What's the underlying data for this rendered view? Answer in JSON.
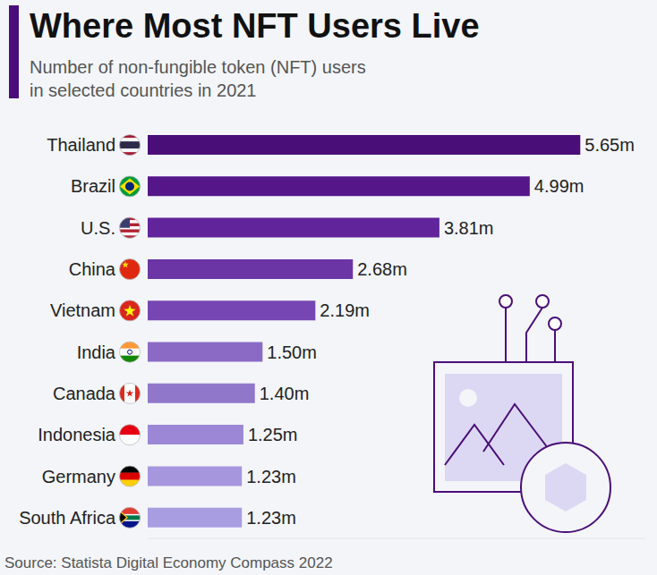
{
  "chart_data": {
    "type": "bar",
    "title": "Where Most NFT Users Live",
    "subtitle": "Number of non-fungible token (NFT) users\nin selected countries in 2021",
    "source": "Source: Statista Digital Economy Compass 2022",
    "orientation": "horizontal",
    "categories": [
      "Thailand",
      "Brazil",
      "U.S.",
      "China",
      "Vietnam",
      "India",
      "Canada",
      "Indonesia",
      "Germany",
      "South Africa"
    ],
    "values": [
      5.65,
      4.99,
      3.81,
      2.68,
      2.19,
      1.5,
      1.4,
      1.25,
      1.23,
      1.23
    ],
    "value_labels": [
      "5.65m",
      "4.99m",
      "3.81m",
      "2.68m",
      "2.19m",
      "1.50m",
      "1.40m",
      "1.25m",
      "1.23m",
      "1.23m"
    ],
    "colors": [
      "#4a0e78",
      "#55168a",
      "#61249a",
      "#6b35a6",
      "#7646b2",
      "#8b6ac6",
      "#9077ca",
      "#9c87d6",
      "#a596dd",
      "#a99de2"
    ],
    "data_labels": true,
    "xlim": [
      0,
      6.5
    ],
    "tick_labels": false,
    "grid": false
  }
}
